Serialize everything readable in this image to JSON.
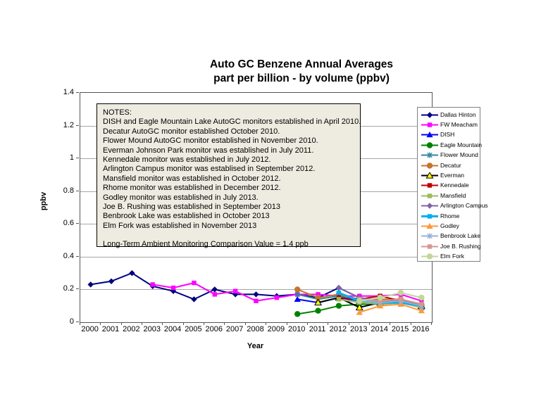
{
  "title": {
    "line1": "Auto GC Benzene Annual Averages",
    "line2": "part per billion - by volume (ppbv)"
  },
  "axes": {
    "y_label": "ppbv",
    "x_label": "Year",
    "y_ticks": [
      "0",
      "0.2",
      "0.4",
      "0.6",
      "0.8",
      "1",
      "1.2",
      "1.4"
    ],
    "x_ticks": [
      "2000",
      "2001",
      "2002",
      "2003",
      "2004",
      "2005",
      "2006",
      "2007",
      "2008",
      "2009",
      "2010",
      "2011",
      "2012",
      "2013",
      "2014",
      "2015",
      "2016"
    ]
  },
  "notes": {
    "header": "NOTES:",
    "lines": [
      "DISH and Eagle Mountain Lake AutoGC monitors established in April 2010.",
      "Decatur AutoGC monitor established October 2010.",
      "Flower Mound AutoGC monitor established in November 2010.",
      "Everman Johnson Park monitor was established in July 2011.",
      "Kennedale monitor was established in July 2012.",
      "Arlington Campus monitor was establised in September 2012.",
      "Mansfield monitor was established in October 2012.",
      "Rhome monitor was established in December 2012.",
      "Godley monitor was established in July 2013.",
      "Joe B. Rushing was established in September 2013",
      "Benbrook Lake was established in October 2013",
      "Elm Fork was established in November 2013"
    ],
    "footer": "Long-Term Ambient Monitoring Comparison Value = 1.4 ppb"
  },
  "chart_data": {
    "type": "line",
    "title": "Auto GC Benzene Annual Averages part per billion - by volume (ppbv)",
    "xlabel": "Year",
    "ylabel": "ppbv",
    "xlim": [
      2000,
      2016
    ],
    "ylim": [
      0,
      1.4
    ],
    "y_tick_step": 0.2,
    "grid": "horizontal",
    "legend_position": "right",
    "series": [
      {
        "name": "Dallas Hinton",
        "color": "#000080",
        "marker": "diamond",
        "x": [
          2000,
          2001,
          2002,
          2003,
          2004,
          2005,
          2006,
          2007,
          2008,
          2009,
          2010,
          2011,
          2012,
          2013,
          2014,
          2015,
          2016
        ],
        "values": [
          0.23,
          0.25,
          0.3,
          0.22,
          0.19,
          0.14,
          0.2,
          0.17,
          0.17,
          0.16,
          0.17,
          0.15,
          0.21,
          0.15,
          0.13,
          0.14,
          0.1
        ]
      },
      {
        "name": "FW Meacham",
        "color": "#ff00ff",
        "marker": "square",
        "x": [
          2003,
          2004,
          2005,
          2006,
          2007,
          2008,
          2009,
          2010,
          2011,
          2012,
          2013,
          2014,
          2015,
          2016
        ],
        "values": [
          0.23,
          0.21,
          0.24,
          0.17,
          0.19,
          0.13,
          0.15,
          0.17,
          0.17,
          0.16,
          0.16,
          0.16,
          0.17,
          0.13
        ]
      },
      {
        "name": "DISH",
        "color": "#0000ff",
        "marker": "triangle",
        "x": [
          2010,
          2011,
          2012,
          2013,
          2014,
          2015,
          2016
        ],
        "values": [
          0.14,
          0.12,
          0.15,
          0.13,
          0.12,
          0.12,
          0.09
        ]
      },
      {
        "name": "Eagle Mountain",
        "color": "#008000",
        "marker": "circle",
        "x": [
          2010,
          2011,
          2012,
          2013,
          2014,
          2015,
          2016
        ],
        "values": [
          0.05,
          0.07,
          0.1,
          0.11,
          0.11,
          0.12,
          0.1
        ]
      },
      {
        "name": "Flower Mound",
        "color": "#31869b",
        "marker": "asterisk",
        "x": [
          2010,
          2011,
          2012,
          2013,
          2014,
          2015,
          2016
        ],
        "values": [
          0.17,
          0.14,
          0.16,
          0.13,
          0.13,
          0.13,
          0.1
        ]
      },
      {
        "name": "Decatur",
        "color": "#c4752e",
        "marker": "circle",
        "x": [
          2010,
          2011,
          2012,
          2013,
          2014,
          2015,
          2016
        ],
        "values": [
          0.2,
          0.15,
          0.17,
          0.14,
          0.14,
          0.14,
          0.11
        ]
      },
      {
        "name": "Everman",
        "color": "#000000",
        "marker": "triangle",
        "marker_color": "#ffff00",
        "x": [
          2011,
          2012,
          2013,
          2014,
          2015,
          2016
        ],
        "values": [
          0.12,
          0.15,
          0.09,
          0.12,
          0.13,
          0.1
        ]
      },
      {
        "name": "Kennedale",
        "color": "#c00000",
        "marker": "square",
        "x": [
          2012,
          2013,
          2014,
          2015,
          2016
        ],
        "values": [
          0.15,
          0.14,
          0.16,
          0.13,
          0.1
        ]
      },
      {
        "name": "Mansfield",
        "color": "#9bbb59",
        "marker": "square",
        "x": [
          2012,
          2013,
          2014,
          2015,
          2016
        ],
        "values": [
          0.14,
          0.12,
          0.11,
          0.12,
          0.09
        ]
      },
      {
        "name": "Arlington Campus",
        "color": "#8064a2",
        "marker": "diamond",
        "x": [
          2012,
          2013,
          2014,
          2015,
          2016
        ],
        "values": [
          0.21,
          0.15,
          0.13,
          0.14,
          0.11
        ]
      },
      {
        "name": "Rhome",
        "color": "#00b0f0",
        "marker": "square",
        "x": [
          2012,
          2013,
          2014,
          2015,
          2016
        ],
        "values": [
          0.18,
          0.13,
          0.12,
          0.12,
          0.1
        ]
      },
      {
        "name": "Godley",
        "color": "#fb9a3c",
        "marker": "triangle",
        "x": [
          2013,
          2014,
          2015,
          2016
        ],
        "values": [
          0.06,
          0.1,
          0.11,
          0.07
        ]
      },
      {
        "name": "Benbrook Lake",
        "color": "#95b3d7",
        "marker": "asterisk",
        "x": [
          2013,
          2014,
          2015,
          2016
        ],
        "values": [
          0.13,
          0.12,
          0.13,
          0.1
        ]
      },
      {
        "name": "Joe B. Rushing",
        "color": "#d99694",
        "marker": "square",
        "x": [
          2013,
          2014,
          2015,
          2016
        ],
        "values": [
          0.14,
          0.13,
          0.14,
          0.11
        ]
      },
      {
        "name": "Elm Fork",
        "color": "#c3d69b",
        "marker": "circle",
        "x": [
          2013,
          2014,
          2015,
          2016
        ],
        "values": [
          0.13,
          0.15,
          0.18,
          0.15
        ]
      }
    ]
  }
}
